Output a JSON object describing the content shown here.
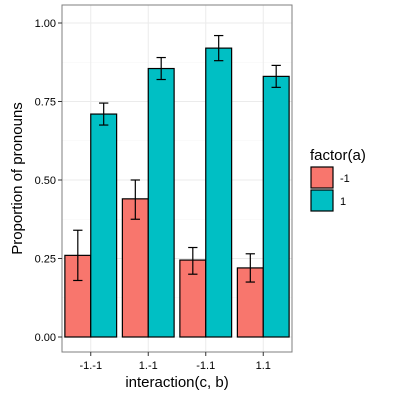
{
  "chart_data": {
    "type": "bar",
    "title": "",
    "xlabel": "interaction(c, b)",
    "ylabel": "Proportion of pronouns",
    "categories": [
      "-1.-1",
      "1.-1",
      "-1.1",
      "1.1"
    ],
    "ylim": [
      0,
      1
    ],
    "y_ticks": [
      "0.00",
      "0.25",
      "0.50",
      "0.75",
      "1.00"
    ],
    "grid": true,
    "legend": {
      "title": "factor(a)",
      "position": "right"
    },
    "series": [
      {
        "name": "-1",
        "color": "#F8766D",
        "values": [
          0.26,
          0.44,
          0.245,
          0.22
        ],
        "error_low": [
          0.18,
          0.375,
          0.2,
          0.175
        ],
        "error_high": [
          0.34,
          0.5,
          0.285,
          0.265
        ]
      },
      {
        "name": "1",
        "color": "#00BFC4",
        "values": [
          0.71,
          0.855,
          0.92,
          0.83
        ],
        "error_low": [
          0.675,
          0.82,
          0.88,
          0.795
        ],
        "error_high": [
          0.745,
          0.89,
          0.96,
          0.865
        ]
      }
    ]
  }
}
